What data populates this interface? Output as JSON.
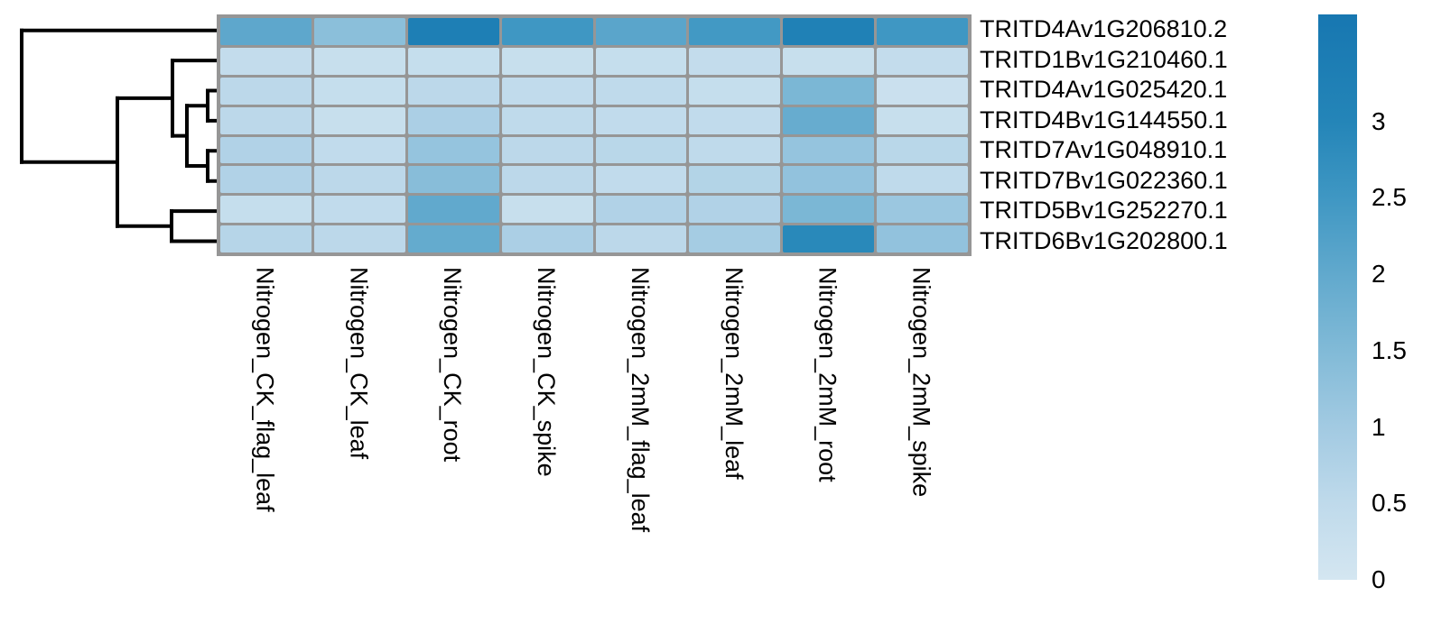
{
  "figure": {
    "background": "#ffffff",
    "text_color": "#000000"
  },
  "chart_data": {
    "type": "heatmap",
    "title": "",
    "xlabel": "",
    "ylabel": "",
    "rows": [
      "TRITD4Av1G206810.2",
      "TRITD1Bv1G210460.1",
      "TRITD4Av1G025420.1",
      "TRITD4Bv1G144550.1",
      "TRITD7Av1G048910.1",
      "TRITD7Bv1G022360.1",
      "TRITD5Bv1G252270.1",
      "TRITD6Bv1G202800.1"
    ],
    "columns": [
      "Nitrogen_CK_flag_leaf",
      "Nitrogen_CK_leaf",
      "Nitrogen_CK_root",
      "Nitrogen_CK_spike",
      "Nitrogen_2mM_flag_leaf",
      "Nitrogen_2mM_leaf",
      "Nitrogen_2mM_root",
      "Nitrogen_2mM_spike"
    ],
    "values": [
      [
        2.05,
        1.35,
        3.3,
        2.5,
        2.1,
        2.45,
        3.2,
        2.5
      ],
      [
        0.4,
        0.3,
        0.35,
        0.3,
        0.35,
        0.4,
        0.3,
        0.4
      ],
      [
        0.55,
        0.35,
        0.55,
        0.45,
        0.5,
        0.35,
        1.6,
        0.25
      ],
      [
        0.55,
        0.3,
        0.85,
        0.5,
        0.45,
        0.45,
        1.9,
        0.3
      ],
      [
        0.75,
        0.45,
        1.2,
        0.55,
        0.6,
        0.5,
        1.2,
        0.6
      ],
      [
        0.75,
        0.55,
        1.4,
        0.55,
        0.45,
        0.7,
        1.25,
        0.5
      ],
      [
        0.35,
        0.45,
        2.0,
        0.3,
        0.75,
        0.75,
        1.6,
        1.1
      ],
      [
        0.65,
        0.55,
        1.95,
        0.85,
        0.55,
        0.95,
        2.9,
        1.25
      ]
    ],
    "value_range": [
      0,
      3.7
    ],
    "grid_on": true,
    "grid_color": "#969696",
    "colormap_stops": [
      [
        0.0,
        "#d4e6f1"
      ],
      [
        0.5,
        "#bfdaeb"
      ],
      [
        1.0,
        "#a2cae2"
      ],
      [
        1.5,
        "#81bad7"
      ],
      [
        2.0,
        "#61a9cd"
      ],
      [
        2.5,
        "#3f97c3"
      ],
      [
        3.0,
        "#2485b8"
      ],
      [
        3.7,
        "#1777b1"
      ]
    ],
    "legend": {
      "position": "right",
      "ticks": [
        {
          "value": 3.0,
          "label": "3"
        },
        {
          "value": 2.5,
          "label": "2.5"
        },
        {
          "value": 2.0,
          "label": "2"
        },
        {
          "value": 1.5,
          "label": "1.5"
        },
        {
          "value": 1.0,
          "label": "1"
        },
        {
          "value": 0.5,
          "label": "0.5"
        },
        {
          "value": 0.0,
          "label": "0"
        }
      ]
    },
    "dendrogram_color": "#000000",
    "row_dendrogram_segments": [
      [
        24,
        33.7,
        243,
        33.7
      ],
      [
        191,
        67.1,
        243,
        67.1
      ],
      [
        230,
        100.5,
        243,
        100.5
      ],
      [
        230,
        133.9,
        243,
        133.9
      ],
      [
        230,
        167.3,
        243,
        167.3
      ],
      [
        230,
        200.7,
        243,
        200.7
      ],
      [
        190,
        234.1,
        243,
        234.1
      ],
      [
        190,
        267.5,
        243,
        267.5
      ],
      [
        207,
        117.2,
        230,
        117.2
      ],
      [
        207,
        184.0,
        230,
        184.0
      ],
      [
        191,
        150.6,
        207,
        150.6
      ],
      [
        130,
        108.9,
        191,
        108.9
      ],
      [
        130,
        250.8,
        190,
        250.8
      ],
      [
        24,
        179.8,
        130,
        179.8
      ],
      [
        24,
        33.7,
        24,
        179.8
      ],
      [
        130,
        108.9,
        130,
        250.8
      ],
      [
        191,
        67.1,
        191,
        150.6
      ],
      [
        207,
        117.2,
        207,
        184.0
      ],
      [
        230,
        100.5,
        230,
        133.9
      ],
      [
        230,
        167.3,
        230,
        200.7
      ],
      [
        190,
        234.1,
        190,
        267.5
      ]
    ]
  }
}
